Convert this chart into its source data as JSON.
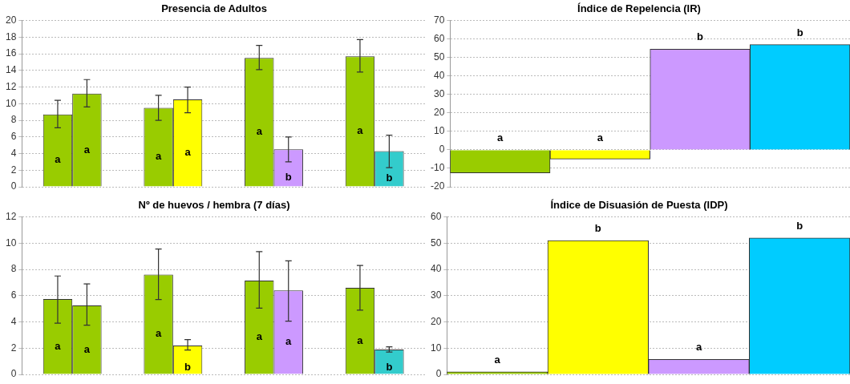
{
  "chart_data": [
    {
      "type": "bar",
      "title": "Presencia de Adultos",
      "categories": [
        null,
        null,
        null,
        null
      ],
      "ylim": [
        0,
        20
      ],
      "yticks": [
        0,
        2,
        4,
        6,
        8,
        10,
        12,
        14,
        16,
        18,
        20
      ],
      "grid": "y",
      "legend": false,
      "tick_labels": "y",
      "series": [
        {
          "color": "#99cc00",
          "values": [
            8.7,
            9.5,
            15.5,
            15.7
          ],
          "errors": [
            [
              7.1,
              10.4
            ],
            [
              8.0,
              11.0
            ],
            [
              14.1,
              17.0
            ],
            [
              13.8,
              17.7
            ]
          ],
          "value_labels": [
            "a",
            "a",
            "a",
            "a"
          ]
        },
        {
          "colors": [
            "#99cc00",
            "#ffff00",
            "#cc99ff",
            "#33cccc"
          ],
          "values": [
            11.2,
            10.5,
            4.5,
            4.3
          ],
          "errors": [
            [
              9.6,
              12.9
            ],
            [
              8.9,
              12.0
            ],
            [
              3.0,
              6.0
            ],
            [
              2.3,
              6.2
            ]
          ],
          "value_labels": [
            "a",
            "a",
            "b",
            "b"
          ]
        }
      ]
    },
    {
      "type": "bar",
      "title": "Índice de Repelencia (IR)",
      "categories": [
        null,
        null,
        null,
        null
      ],
      "ylim": [
        -20,
        70
      ],
      "yticks": [
        -20,
        -10,
        0,
        10,
        20,
        30,
        40,
        50,
        60,
        70
      ],
      "grid": "y",
      "legend": false,
      "tick_labels": "y",
      "series": [
        {
          "colors": [
            "#99cc00",
            "#ffff00",
            "#cc99ff",
            "#00ccff"
          ],
          "values": [
            -12.5,
            -5,
            54.5,
            57
          ],
          "value_labels": [
            "a",
            "a",
            "b",
            "b"
          ]
        }
      ]
    },
    {
      "type": "bar",
      "title": "Nº de huevos / hembra (7 días)",
      "categories": [
        null,
        null,
        null,
        null
      ],
      "ylim": [
        0,
        12
      ],
      "yticks": [
        0,
        2,
        4,
        6,
        8,
        10,
        12
      ],
      "grid": "y",
      "legend": false,
      "tick_labels": "y",
      "series": [
        {
          "color": "#99cc00",
          "values": [
            5.75,
            7.6,
            7.15,
            6.6
          ],
          "errors": [
            [
              3.9,
              7.5
            ],
            [
              5.7,
              9.55
            ],
            [
              5.05,
              9.35
            ],
            [
              4.9,
              8.3
            ]
          ],
          "value_labels": [
            "a",
            "a",
            "a",
            "a"
          ]
        },
        {
          "colors": [
            "#99cc00",
            "#ffff00",
            "#cc99ff",
            "#33cccc"
          ],
          "values": [
            5.25,
            2.2,
            6.4,
            1.9
          ],
          "errors": [
            [
              3.75,
              6.9
            ],
            [
              1.85,
              2.65
            ],
            [
              4.05,
              8.65
            ],
            [
              1.7,
              2.1
            ]
          ],
          "value_labels": [
            "a",
            "b",
            "a",
            "b"
          ]
        }
      ]
    },
    {
      "type": "bar",
      "title": "Índice de Disuasión de Puesta (IDP)",
      "categories": [
        null,
        null,
        null,
        null
      ],
      "ylim": [
        0,
        60
      ],
      "yticks": [
        0,
        10,
        20,
        30,
        40,
        50,
        60
      ],
      "grid": "y",
      "legend": false,
      "tick_labels": "y",
      "series": [
        {
          "colors": [
            "#99cc00",
            "#ffff00",
            "#cc99ff",
            "#00ccff"
          ],
          "values": [
            1,
            51,
            5.7,
            52
          ],
          "value_labels": [
            "a",
            "b",
            "a",
            "b"
          ]
        }
      ]
    }
  ]
}
